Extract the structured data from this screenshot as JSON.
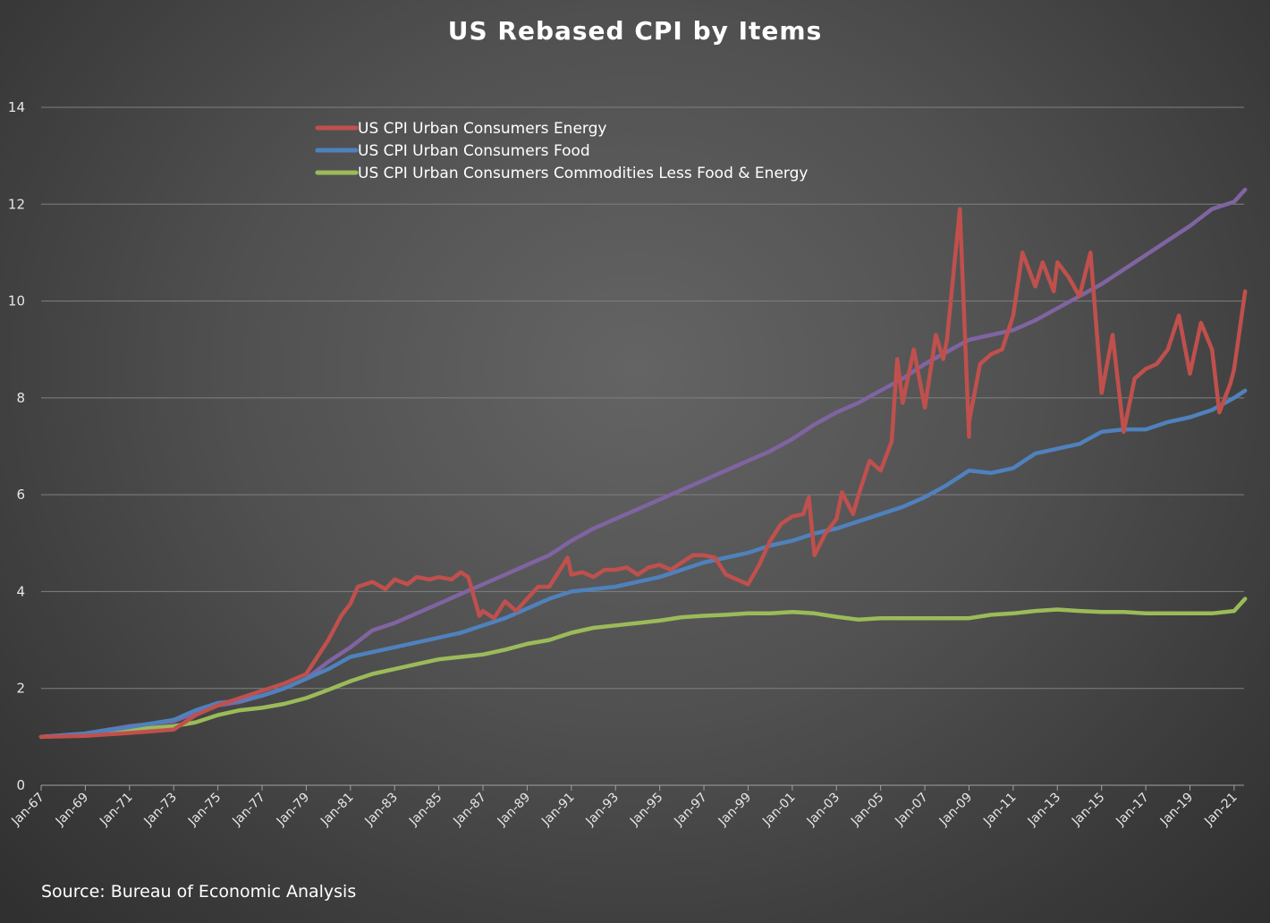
{
  "title": "US Rebased CPI by Items",
  "source": "Source: Bureau of Economic Analysis",
  "colors": {
    "energy": "#c0504d",
    "food": "#4f81bd",
    "core": "#9bbb59",
    "fourth": "#8064a2"
  },
  "chart_data": {
    "type": "line",
    "title": "US Rebased CPI by Items",
    "xlabel": "",
    "ylabel": "",
    "ylim": [
      0,
      14
    ],
    "yticks": [
      0,
      2,
      4,
      6,
      8,
      10,
      12,
      14
    ],
    "xlim": [
      "Jan-67",
      "Jan-21"
    ],
    "xtick_labels": [
      "Jan-67",
      "Jan-69",
      "Jan-71",
      "Jan-73",
      "Jan-75",
      "Jan-77",
      "Jan-79",
      "Jan-81",
      "Jan-83",
      "Jan-85",
      "Jan-87",
      "Jan-89",
      "Jan-91",
      "Jan-93",
      "Jan-95",
      "Jan-97",
      "Jan-99",
      "Jan-01",
      "Jan-03",
      "Jan-05",
      "Jan-07",
      "Jan-09",
      "Jan-11",
      "Jan-13",
      "Jan-15",
      "Jan-17",
      "Jan-19",
      "Jan-21"
    ],
    "grid": true,
    "legend_position": "top-left",
    "series": [
      {
        "name": "US CPI Urban Consumers Energy",
        "color": "#c0504d",
        "points": [
          [
            "Jan-67",
            1.0
          ],
          [
            "Jan-69",
            1.02
          ],
          [
            "Jan-71",
            1.08
          ],
          [
            "Jan-73",
            1.15
          ],
          [
            "Jan-74",
            1.45
          ],
          [
            "Jan-75",
            1.65
          ],
          [
            "Jan-76",
            1.8
          ],
          [
            "Jan-77",
            1.95
          ],
          [
            "Jan-78",
            2.1
          ],
          [
            "Jan-79",
            2.3
          ],
          [
            "Jan-80",
            3.0
          ],
          [
            "Jan-80-07",
            3.5
          ],
          [
            "Jan-81",
            3.75
          ],
          [
            "Jan-81-04",
            4.1
          ],
          [
            "Jan-82",
            4.2
          ],
          [
            "Jan-82-07",
            4.05
          ],
          [
            "Jan-83",
            4.25
          ],
          [
            "Jan-83-07",
            4.15
          ],
          [
            "Jan-84",
            4.3
          ],
          [
            "Jan-84-07",
            4.25
          ],
          [
            "Jan-85",
            4.3
          ],
          [
            "Jan-85-07",
            4.25
          ],
          [
            "Jan-86",
            4.4
          ],
          [
            "Jan-86-04",
            4.3
          ],
          [
            "Jan-86-10",
            3.5
          ],
          [
            "Jan-87",
            3.6
          ],
          [
            "Jan-87-06",
            3.45
          ],
          [
            "Jan-88",
            3.8
          ],
          [
            "Jan-88-06",
            3.6
          ],
          [
            "Jan-89",
            3.85
          ],
          [
            "Jan-89-06",
            4.1
          ],
          [
            "Jan-90",
            4.1
          ],
          [
            "Jan-90-10",
            4.7
          ],
          [
            "Jan-91",
            4.35
          ],
          [
            "Jan-91-06",
            4.4
          ],
          [
            "Jan-92",
            4.3
          ],
          [
            "Jan-92-06",
            4.45
          ],
          [
            "Jan-93",
            4.45
          ],
          [
            "Jan-93-06",
            4.5
          ],
          [
            "Jan-94",
            4.35
          ],
          [
            "Jan-94-06",
            4.5
          ],
          [
            "Jan-95",
            4.55
          ],
          [
            "Jan-95-06",
            4.45
          ],
          [
            "Jan-96",
            4.6
          ],
          [
            "Jan-96-06",
            4.75
          ],
          [
            "Jan-97",
            4.75
          ],
          [
            "Jan-97-06",
            4.7
          ],
          [
            "Jan-98",
            4.35
          ],
          [
            "Jan-98-06",
            4.25
          ],
          [
            "Jan-99",
            4.15
          ],
          [
            "Jan-99-06",
            4.55
          ],
          [
            "Jan-00",
            5.05
          ],
          [
            "Jan-00-06",
            5.4
          ],
          [
            "Jan-01",
            5.55
          ],
          [
            "Jan-01-06",
            5.6
          ],
          [
            "Jan-01-09",
            5.95
          ],
          [
            "Jan-02",
            4.75
          ],
          [
            "Jan-02-06",
            5.2
          ],
          [
            "Jan-03",
            5.5
          ],
          [
            "Jan-03-03",
            6.05
          ],
          [
            "Jan-03-09",
            5.6
          ],
          [
            "Jan-04",
            6.0
          ],
          [
            "Jan-04-06",
            6.7
          ],
          [
            "Jan-05",
            6.5
          ],
          [
            "Jan-05-06",
            7.1
          ],
          [
            "Jan-05-09",
            8.8
          ],
          [
            "Jan-06",
            7.9
          ],
          [
            "Jan-06-06",
            9.0
          ],
          [
            "Jan-07",
            7.8
          ],
          [
            "Jan-07-06",
            9.3
          ],
          [
            "Jan-07-10",
            8.8
          ],
          [
            "Jan-08",
            9.2
          ],
          [
            "Jan-08-07",
            11.9
          ],
          [
            "Jan-08-12",
            7.2
          ],
          [
            "Jan-09",
            7.5
          ],
          [
            "Jan-09-06",
            8.7
          ],
          [
            "Jan-10",
            8.9
          ],
          [
            "Jan-10-06",
            9.0
          ],
          [
            "Jan-11",
            9.7
          ],
          [
            "Jan-11-05",
            11.0
          ],
          [
            "Jan-12",
            10.3
          ],
          [
            "Jan-12-04",
            10.8
          ],
          [
            "Jan-12-10",
            10.2
          ],
          [
            "Jan-13",
            10.8
          ],
          [
            "Jan-13-06",
            10.5
          ],
          [
            "Jan-14",
            10.1
          ],
          [
            "Jan-14-06",
            11.0
          ],
          [
            "Jan-15",
            8.1
          ],
          [
            "Jan-15-06",
            9.3
          ],
          [
            "Jan-16",
            7.3
          ],
          [
            "Jan-16-06",
            8.4
          ],
          [
            "Jan-17",
            8.6
          ],
          [
            "Jan-17-06",
            8.7
          ],
          [
            "Jan-18",
            9.0
          ],
          [
            "Jan-18-06",
            9.7
          ],
          [
            "Jan-19",
            8.5
          ],
          [
            "Jan-19-06",
            9.55
          ],
          [
            "Jan-20",
            9.0
          ],
          [
            "Jan-20-04",
            7.7
          ],
          [
            "Jan-20-10",
            8.3
          ],
          [
            "Jan-21",
            8.6
          ],
          [
            "Jan-21-06",
            10.2
          ]
        ]
      },
      {
        "name": "US CPI Urban Consumers Food",
        "color": "#4f81bd",
        "points": [
          [
            "Jan-67",
            1.0
          ],
          [
            "Jan-69",
            1.07
          ],
          [
            "Jan-71",
            1.2
          ],
          [
            "Jan-73",
            1.35
          ],
          [
            "Jan-74",
            1.55
          ],
          [
            "Jan-75",
            1.7
          ],
          [
            "Jan-76",
            1.75
          ],
          [
            "Jan-77",
            1.85
          ],
          [
            "Jan-78",
            2.0
          ],
          [
            "Jan-79",
            2.2
          ],
          [
            "Jan-80",
            2.4
          ],
          [
            "Jan-81",
            2.65
          ],
          [
            "Jan-82",
            2.75
          ],
          [
            "Jan-83",
            2.85
          ],
          [
            "Jan-84",
            2.95
          ],
          [
            "Jan-85",
            3.05
          ],
          [
            "Jan-86",
            3.15
          ],
          [
            "Jan-87",
            3.3
          ],
          [
            "Jan-88",
            3.45
          ],
          [
            "Jan-89",
            3.65
          ],
          [
            "Jan-90",
            3.85
          ],
          [
            "Jan-91",
            4.0
          ],
          [
            "Jan-92",
            4.05
          ],
          [
            "Jan-93",
            4.1
          ],
          [
            "Jan-94",
            4.2
          ],
          [
            "Jan-95",
            4.3
          ],
          [
            "Jan-96",
            4.45
          ],
          [
            "Jan-97",
            4.6
          ],
          [
            "Jan-98",
            4.7
          ],
          [
            "Jan-99",
            4.8
          ],
          [
            "Jan-00",
            4.95
          ],
          [
            "Jan-01",
            5.05
          ],
          [
            "Jan-02",
            5.2
          ],
          [
            "Jan-03",
            5.3
          ],
          [
            "Jan-04",
            5.45
          ],
          [
            "Jan-05",
            5.6
          ],
          [
            "Jan-06",
            5.75
          ],
          [
            "Jan-07",
            5.95
          ],
          [
            "Jan-08",
            6.2
          ],
          [
            "Jan-09",
            6.5
          ],
          [
            "Jan-10",
            6.45
          ],
          [
            "Jan-11",
            6.55
          ],
          [
            "Jan-12",
            6.85
          ],
          [
            "Jan-13",
            6.95
          ],
          [
            "Jan-14",
            7.05
          ],
          [
            "Jan-15",
            7.3
          ],
          [
            "Jan-16",
            7.35
          ],
          [
            "Jan-17",
            7.35
          ],
          [
            "Jan-18",
            7.5
          ],
          [
            "Jan-19",
            7.6
          ],
          [
            "Jan-20",
            7.75
          ],
          [
            "Jan-21",
            8.0
          ],
          [
            "Jan-21-06",
            8.15
          ]
        ]
      },
      {
        "name": "US CPI Urban Consumers Commodities Less Food & Energy",
        "color": "#9bbb59",
        "points": [
          [
            "Jan-67",
            1.0
          ],
          [
            "Jan-69",
            1.05
          ],
          [
            "Jan-71",
            1.15
          ],
          [
            "Jan-73",
            1.22
          ],
          [
            "Jan-74",
            1.3
          ],
          [
            "Jan-75",
            1.45
          ],
          [
            "Jan-76",
            1.55
          ],
          [
            "Jan-77",
            1.6
          ],
          [
            "Jan-78",
            1.68
          ],
          [
            "Jan-79",
            1.8
          ],
          [
            "Jan-80",
            1.97
          ],
          [
            "Jan-81",
            2.15
          ],
          [
            "Jan-82",
            2.3
          ],
          [
            "Jan-83",
            2.4
          ],
          [
            "Jan-84",
            2.5
          ],
          [
            "Jan-85",
            2.6
          ],
          [
            "Jan-86",
            2.65
          ],
          [
            "Jan-87",
            2.7
          ],
          [
            "Jan-88",
            2.8
          ],
          [
            "Jan-89",
            2.92
          ],
          [
            "Jan-90",
            3.0
          ],
          [
            "Jan-91",
            3.15
          ],
          [
            "Jan-92",
            3.25
          ],
          [
            "Jan-93",
            3.3
          ],
          [
            "Jan-94",
            3.35
          ],
          [
            "Jan-95",
            3.4
          ],
          [
            "Jan-96",
            3.47
          ],
          [
            "Jan-97",
            3.5
          ],
          [
            "Jan-98",
            3.52
          ],
          [
            "Jan-99",
            3.55
          ],
          [
            "Jan-00",
            3.55
          ],
          [
            "Jan-01",
            3.58
          ],
          [
            "Jan-02",
            3.55
          ],
          [
            "Jan-03",
            3.48
          ],
          [
            "Jan-04",
            3.42
          ],
          [
            "Jan-05",
            3.45
          ],
          [
            "Jan-06",
            3.45
          ],
          [
            "Jan-07",
            3.45
          ],
          [
            "Jan-08",
            3.45
          ],
          [
            "Jan-09",
            3.45
          ],
          [
            "Jan-10",
            3.52
          ],
          [
            "Jan-11",
            3.55
          ],
          [
            "Jan-12",
            3.6
          ],
          [
            "Jan-13",
            3.63
          ],
          [
            "Jan-14",
            3.6
          ],
          [
            "Jan-15",
            3.58
          ],
          [
            "Jan-16",
            3.58
          ],
          [
            "Jan-17",
            3.55
          ],
          [
            "Jan-18",
            3.55
          ],
          [
            "Jan-19",
            3.55
          ],
          [
            "Jan-20",
            3.55
          ],
          [
            "Jan-21",
            3.6
          ],
          [
            "Jan-21-06",
            3.85
          ]
        ]
      },
      {
        "name": "",
        "color": "#8064a2",
        "points": [
          [
            "Jan-67",
            1.0
          ],
          [
            "Jan-69",
            1.07
          ],
          [
            "Jan-71",
            1.22
          ],
          [
            "Jan-73",
            1.32
          ],
          [
            "Jan-74",
            1.5
          ],
          [
            "Jan-75",
            1.65
          ],
          [
            "Jan-76",
            1.72
          ],
          [
            "Jan-77",
            1.85
          ],
          [
            "Jan-78",
            2.0
          ],
          [
            "Jan-79",
            2.2
          ],
          [
            "Jan-80",
            2.55
          ],
          [
            "Jan-81",
            2.85
          ],
          [
            "Jan-82",
            3.2
          ],
          [
            "Jan-83",
            3.35
          ],
          [
            "Jan-84",
            3.55
          ],
          [
            "Jan-85",
            3.75
          ],
          [
            "Jan-86",
            3.95
          ],
          [
            "Jan-87",
            4.15
          ],
          [
            "Jan-88",
            4.35
          ],
          [
            "Jan-89",
            4.55
          ],
          [
            "Jan-90",
            4.75
          ],
          [
            "Jan-91",
            5.05
          ],
          [
            "Jan-92",
            5.3
          ],
          [
            "Jan-93",
            5.5
          ],
          [
            "Jan-94",
            5.7
          ],
          [
            "Jan-95",
            5.9
          ],
          [
            "Jan-96",
            6.1
          ],
          [
            "Jan-97",
            6.3
          ],
          [
            "Jan-98",
            6.5
          ],
          [
            "Jan-99",
            6.7
          ],
          [
            "Jan-00",
            6.9
          ],
          [
            "Jan-01",
            7.15
          ],
          [
            "Jan-02",
            7.45
          ],
          [
            "Jan-03",
            7.7
          ],
          [
            "Jan-04",
            7.9
          ],
          [
            "Jan-05",
            8.15
          ],
          [
            "Jan-06",
            8.4
          ],
          [
            "Jan-07",
            8.7
          ],
          [
            "Jan-08",
            8.95
          ],
          [
            "Jan-09",
            9.2
          ],
          [
            "Jan-10",
            9.3
          ],
          [
            "Jan-11",
            9.4
          ],
          [
            "Jan-12",
            9.6
          ],
          [
            "Jan-13",
            9.85
          ],
          [
            "Jan-14",
            10.1
          ],
          [
            "Jan-15",
            10.35
          ],
          [
            "Jan-16",
            10.65
          ],
          [
            "Jan-17",
            10.95
          ],
          [
            "Jan-18",
            11.25
          ],
          [
            "Jan-19",
            11.55
          ],
          [
            "Jan-20",
            11.9
          ],
          [
            "Jan-21",
            12.05
          ],
          [
            "Jan-21-06",
            12.3
          ]
        ]
      }
    ]
  }
}
